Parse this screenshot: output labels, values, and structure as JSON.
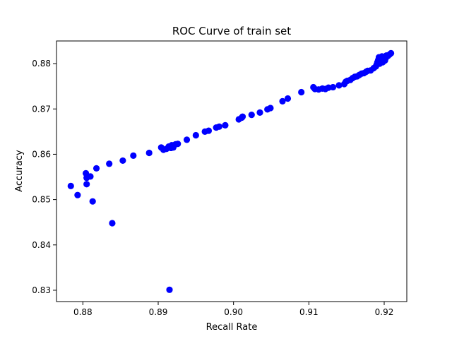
{
  "chart_data": {
    "type": "scatter",
    "title": "ROC Curve of train set",
    "xlabel": "Recall Rate",
    "ylabel": "Accuracy",
    "xlim": [
      0.8765,
      0.923
    ],
    "ylim": [
      0.8275,
      0.885
    ],
    "x_ticks": [
      0.88,
      0.89,
      0.9,
      0.91,
      0.92
    ],
    "x_tick_labels": [
      "0.88",
      "0.89",
      "0.90",
      "0.91",
      "0.92"
    ],
    "y_ticks": [
      0.83,
      0.84,
      0.85,
      0.86,
      0.87,
      0.88
    ],
    "y_tick_labels": [
      "0.83",
      "0.84",
      "0.85",
      "0.86",
      "0.87",
      "0.88"
    ],
    "grid": false,
    "marker_color": "#0000ff",
    "points": [
      [
        0.8784,
        0.853
      ],
      [
        0.8793,
        0.851
      ],
      [
        0.8804,
        0.8558
      ],
      [
        0.8805,
        0.8548
      ],
      [
        0.8805,
        0.8534
      ],
      [
        0.881,
        0.8551
      ],
      [
        0.8813,
        0.8496
      ],
      [
        0.8818,
        0.8569
      ],
      [
        0.8835,
        0.8579
      ],
      [
        0.8839,
        0.8448
      ],
      [
        0.8853,
        0.8586
      ],
      [
        0.8867,
        0.8597
      ],
      [
        0.8888,
        0.8603
      ],
      [
        0.8904,
        0.8615
      ],
      [
        0.8907,
        0.861
      ],
      [
        0.8911,
        0.8612
      ],
      [
        0.8914,
        0.8617
      ],
      [
        0.8915,
        0.8301
      ],
      [
        0.8917,
        0.8614
      ],
      [
        0.8918,
        0.862
      ],
      [
        0.892,
        0.8615
      ],
      [
        0.8923,
        0.8622
      ],
      [
        0.8926,
        0.8623
      ],
      [
        0.8938,
        0.8632
      ],
      [
        0.895,
        0.8642
      ],
      [
        0.8962,
        0.865
      ],
      [
        0.8967,
        0.8652
      ],
      [
        0.8977,
        0.8659
      ],
      [
        0.8981,
        0.8661
      ],
      [
        0.8989,
        0.8664
      ],
      [
        0.9007,
        0.8677
      ],
      [
        0.9011,
        0.8681
      ],
      [
        0.9012,
        0.8683
      ],
      [
        0.9024,
        0.8687
      ],
      [
        0.9035,
        0.8692
      ],
      [
        0.9045,
        0.8699
      ],
      [
        0.9049,
        0.8702
      ],
      [
        0.9065,
        0.8717
      ],
      [
        0.9072,
        0.8723
      ],
      [
        0.909,
        0.8737
      ],
      [
        0.9106,
        0.8748
      ],
      [
        0.9108,
        0.8744
      ],
      [
        0.9113,
        0.8743
      ],
      [
        0.9118,
        0.8745
      ],
      [
        0.9122,
        0.8744
      ],
      [
        0.9126,
        0.8747
      ],
      [
        0.9132,
        0.8748
      ],
      [
        0.914,
        0.8752
      ],
      [
        0.9147,
        0.8755
      ],
      [
        0.9149,
        0.876
      ],
      [
        0.9151,
        0.8762
      ],
      [
        0.9155,
        0.8764
      ],
      [
        0.9158,
        0.8768
      ],
      [
        0.9161,
        0.8771
      ],
      [
        0.9164,
        0.8772
      ],
      [
        0.9167,
        0.8775
      ],
      [
        0.917,
        0.8778
      ],
      [
        0.9173,
        0.8779
      ],
      [
        0.9176,
        0.8782
      ],
      [
        0.9178,
        0.8784
      ],
      [
        0.9182,
        0.8785
      ],
      [
        0.9186,
        0.879
      ],
      [
        0.9189,
        0.8794
      ],
      [
        0.919,
        0.8798
      ],
      [
        0.9191,
        0.8803
      ],
      [
        0.9192,
        0.8808
      ],
      [
        0.9193,
        0.881
      ],
      [
        0.9193,
        0.8814
      ],
      [
        0.9194,
        0.88
      ],
      [
        0.9195,
        0.8806
      ],
      [
        0.9196,
        0.8812
      ],
      [
        0.9197,
        0.8816
      ],
      [
        0.9198,
        0.8803
      ],
      [
        0.9199,
        0.881
      ],
      [
        0.92,
        0.8815
      ],
      [
        0.9201,
        0.8807
      ],
      [
        0.9202,
        0.8812
      ],
      [
        0.9203,
        0.8818
      ],
      [
        0.9205,
        0.8817
      ],
      [
        0.9207,
        0.882
      ],
      [
        0.9209,
        0.8823
      ]
    ]
  }
}
